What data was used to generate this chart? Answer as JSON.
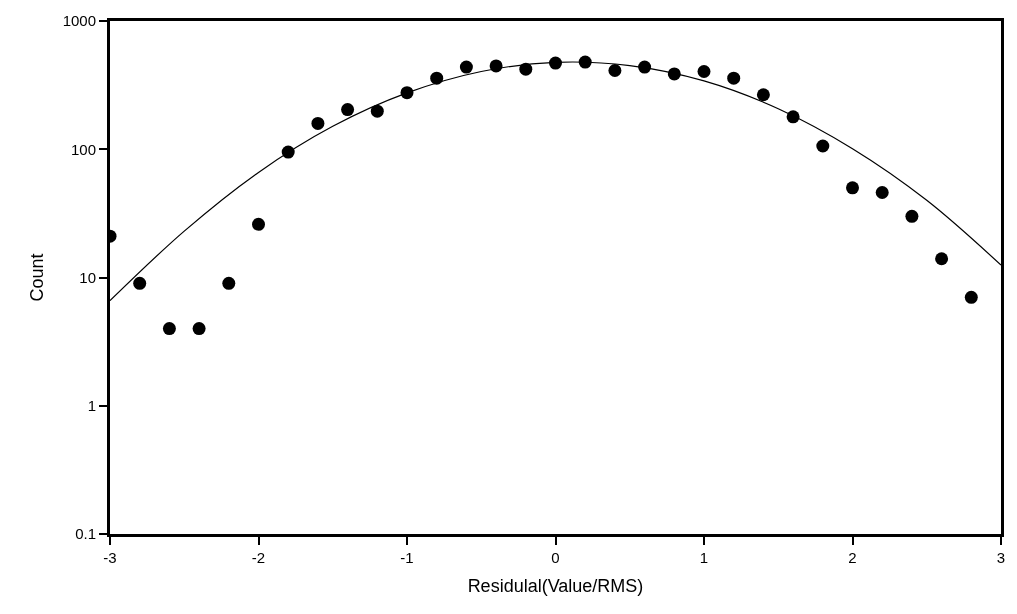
{
  "chart_data": {
    "type": "scatter",
    "xlabel": "Residulal(Value/RMS)",
    "ylabel": "Count",
    "log": "y",
    "marker": "circle",
    "xlim": [
      -3,
      3
    ],
    "xticks": [
      -3,
      -2,
      -1,
      0,
      1,
      2,
      3
    ],
    "ylim": [
      0.1,
      1000
    ],
    "yticks": [
      0.1,
      1,
      10,
      100,
      1000
    ],
    "series": [
      {
        "color": "#000000",
        "x": [
          -3,
          -2.8,
          -2.6,
          -2.4,
          -2.2,
          -2,
          -1.8,
          -1.6,
          -1.4,
          -1.2,
          -1,
          -0.8,
          -0.6,
          -0.4,
          -0.2,
          0,
          0.2,
          0.4,
          0.6,
          0.8,
          1,
          1.2,
          1.4,
          1.6,
          1.8,
          2,
          2.2,
          2.4,
          2.6,
          2.8
        ],
        "values": [
          21,
          9,
          4,
          4,
          9,
          26,
          95,
          159,
          204,
          198,
          276,
          358,
          437,
          446,
          421,
          470,
          478,
          411,
          437,
          387,
          404,
          358,
          266,
          179,
          106,
          50,
          46,
          30,
          14,
          7
        ]
      },
      {
        "type": "line",
        "color": "#000000",
        "marker": "none",
        "line_style": "solid",
        "x": [
          -3,
          -2.5,
          -2,
          -1.5,
          -1,
          -0.5,
          0,
          0.5,
          1,
          1.5,
          2,
          2.5,
          3
        ],
        "values": [
          6.6,
          23,
          66,
          151,
          275,
          404,
          476,
          449,
          341,
          207,
          101,
          40,
          12.5
        ]
      }
    ]
  }
}
